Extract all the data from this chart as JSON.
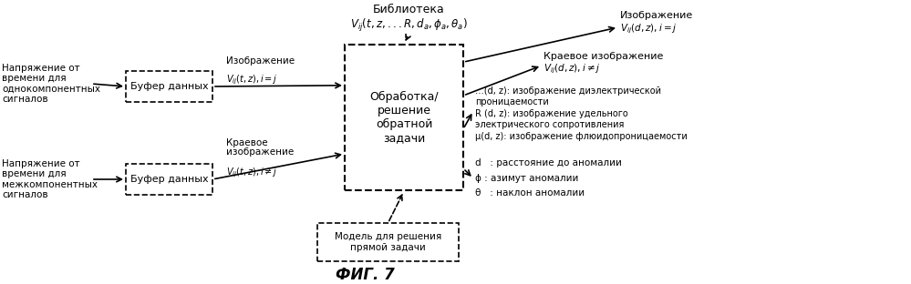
{
  "bg_color": "#ffffff",
  "fig_caption": "ФИГ. 7",
  "library_title": "Библиотека",
  "box1_text": "Буфер данных",
  "box2_text": "Буфер данных",
  "box3_text": "Обработка/\nрешение\nобратной\nзадачи",
  "box4_text": "Модель для решения\nпрямой задачи",
  "left_text1": "Напряжение от\nвремени для\nоднокомпонентных\nсигналов",
  "left_text2": "Напряжение от\nвремени для\nмежкомпонентных\nсигналов",
  "label_img1": "Изображение",
  "label_edge1_line1": "Краевое",
  "label_edge1_line2": "изображение",
  "out_img_title": "Изображение",
  "out_edge_title": "Краевое изображение",
  "out_text1a": "…(d, z): изображение диэлектрической",
  "out_text1b": "проницаемости",
  "out_text2a": "R (d, z): изображение удельного",
  "out_text2b": "электрического сопротивления",
  "out_text3": "μ(d, z): изображение флюидопроницаемости",
  "out_text4": "d   : расстояние до аномалии",
  "out_text5": "ϕ : азимут аномалии",
  "out_text6": "θ   : наклон аномалии"
}
